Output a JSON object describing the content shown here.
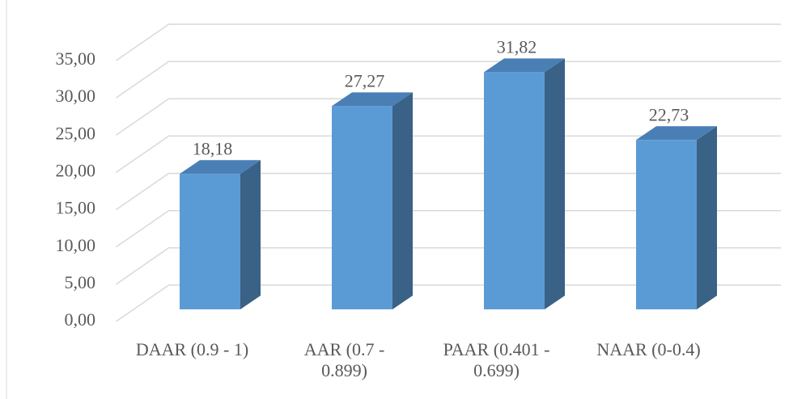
{
  "chart_data": {
    "type": "bar3d",
    "categories": [
      "DAAR (0.9 - 1)",
      "AAR (0.7 - 0.899)",
      "PAAR (0.401 - 0.699)",
      "NAAR (0-0.4)"
    ],
    "values": [
      18.18,
      27.27,
      31.82,
      22.73
    ],
    "value_labels": [
      "18,18",
      "27,27",
      "31,82",
      "22,73"
    ],
    "color": "#5b9bd5",
    "ylim": [
      0,
      35
    ],
    "yticks": [
      {
        "value": 0,
        "label": "0,00"
      },
      {
        "value": 5,
        "label": "5,00"
      },
      {
        "value": 10,
        "label": "10,00"
      },
      {
        "value": 15,
        "label": "15,00"
      },
      {
        "value": 20,
        "label": "20,00"
      },
      {
        "value": 25,
        "label": "25,00"
      },
      {
        "value": 30,
        "label": "30,00"
      },
      {
        "value": 35,
        "label": "35,00"
      }
    ],
    "grid": true
  }
}
